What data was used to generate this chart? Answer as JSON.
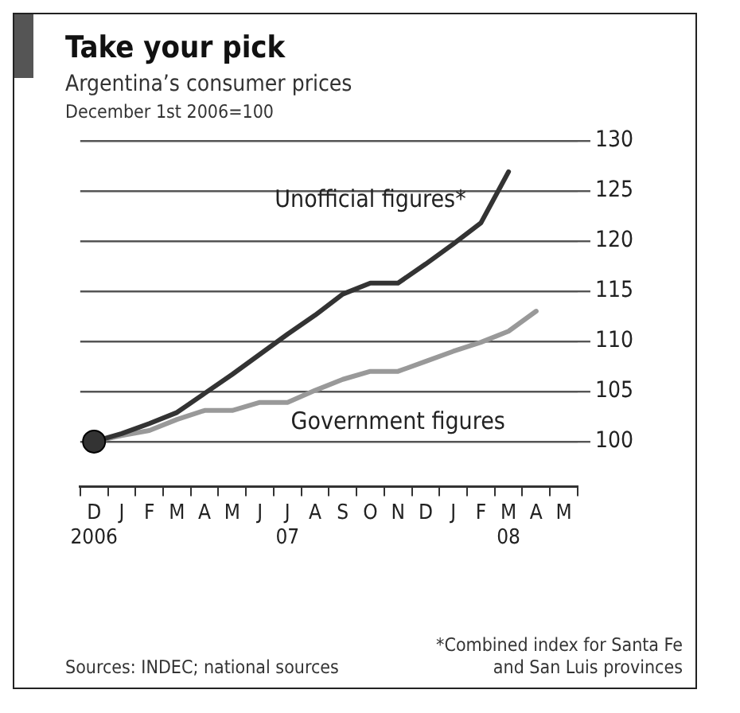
{
  "chart_data": {
    "type": "line",
    "title": "Take your pick",
    "subtitle": "Argentina’s consumer prices",
    "ylabel": "December 1st 2006=100",
    "categories": [
      "D\n2006",
      "J",
      "F",
      "M",
      "A",
      "M",
      "J",
      "J\n07",
      "A",
      "S",
      "O",
      "N",
      "D",
      "J",
      "F",
      "M\n08",
      "A",
      "M"
    ],
    "series": [
      {
        "name": "Unofficial figures*",
        "color": "#333333",
        "values": [
          100,
          100.8,
          101.8,
          102.9,
          104.8,
          106.7,
          108.7,
          110.7,
          112.6,
          114.7,
          115.8,
          115.8,
          117.7,
          119.7,
          121.8,
          126.9,
          null,
          null
        ]
      },
      {
        "name": "Government figures",
        "color": "#999999",
        "values": [
          100,
          100.6,
          101.1,
          102.2,
          103.1,
          103.1,
          103.9,
          103.9,
          105.1,
          106.2,
          107,
          107,
          108,
          109,
          109.9,
          111,
          113,
          null
        ]
      },
      {
        "type": "scatter",
        "marker": "circle",
        "color": "#333333",
        "values": [
          100,
          null,
          null,
          null,
          null,
          null,
          null,
          null,
          null,
          null,
          null,
          null,
          null,
          null,
          null,
          null,
          null,
          null
        ]
      }
    ],
    "ylim": [
      95.5,
      130
    ],
    "yticks": [
      100,
      105,
      110,
      115,
      120,
      125,
      130
    ],
    "grid": "y",
    "legend": false,
    "marker": "none",
    "annotations": [
      "*Combined index for Santa Fe and San Luis provinces",
      "Sources: INDEC; national sources"
    ]
  }
}
